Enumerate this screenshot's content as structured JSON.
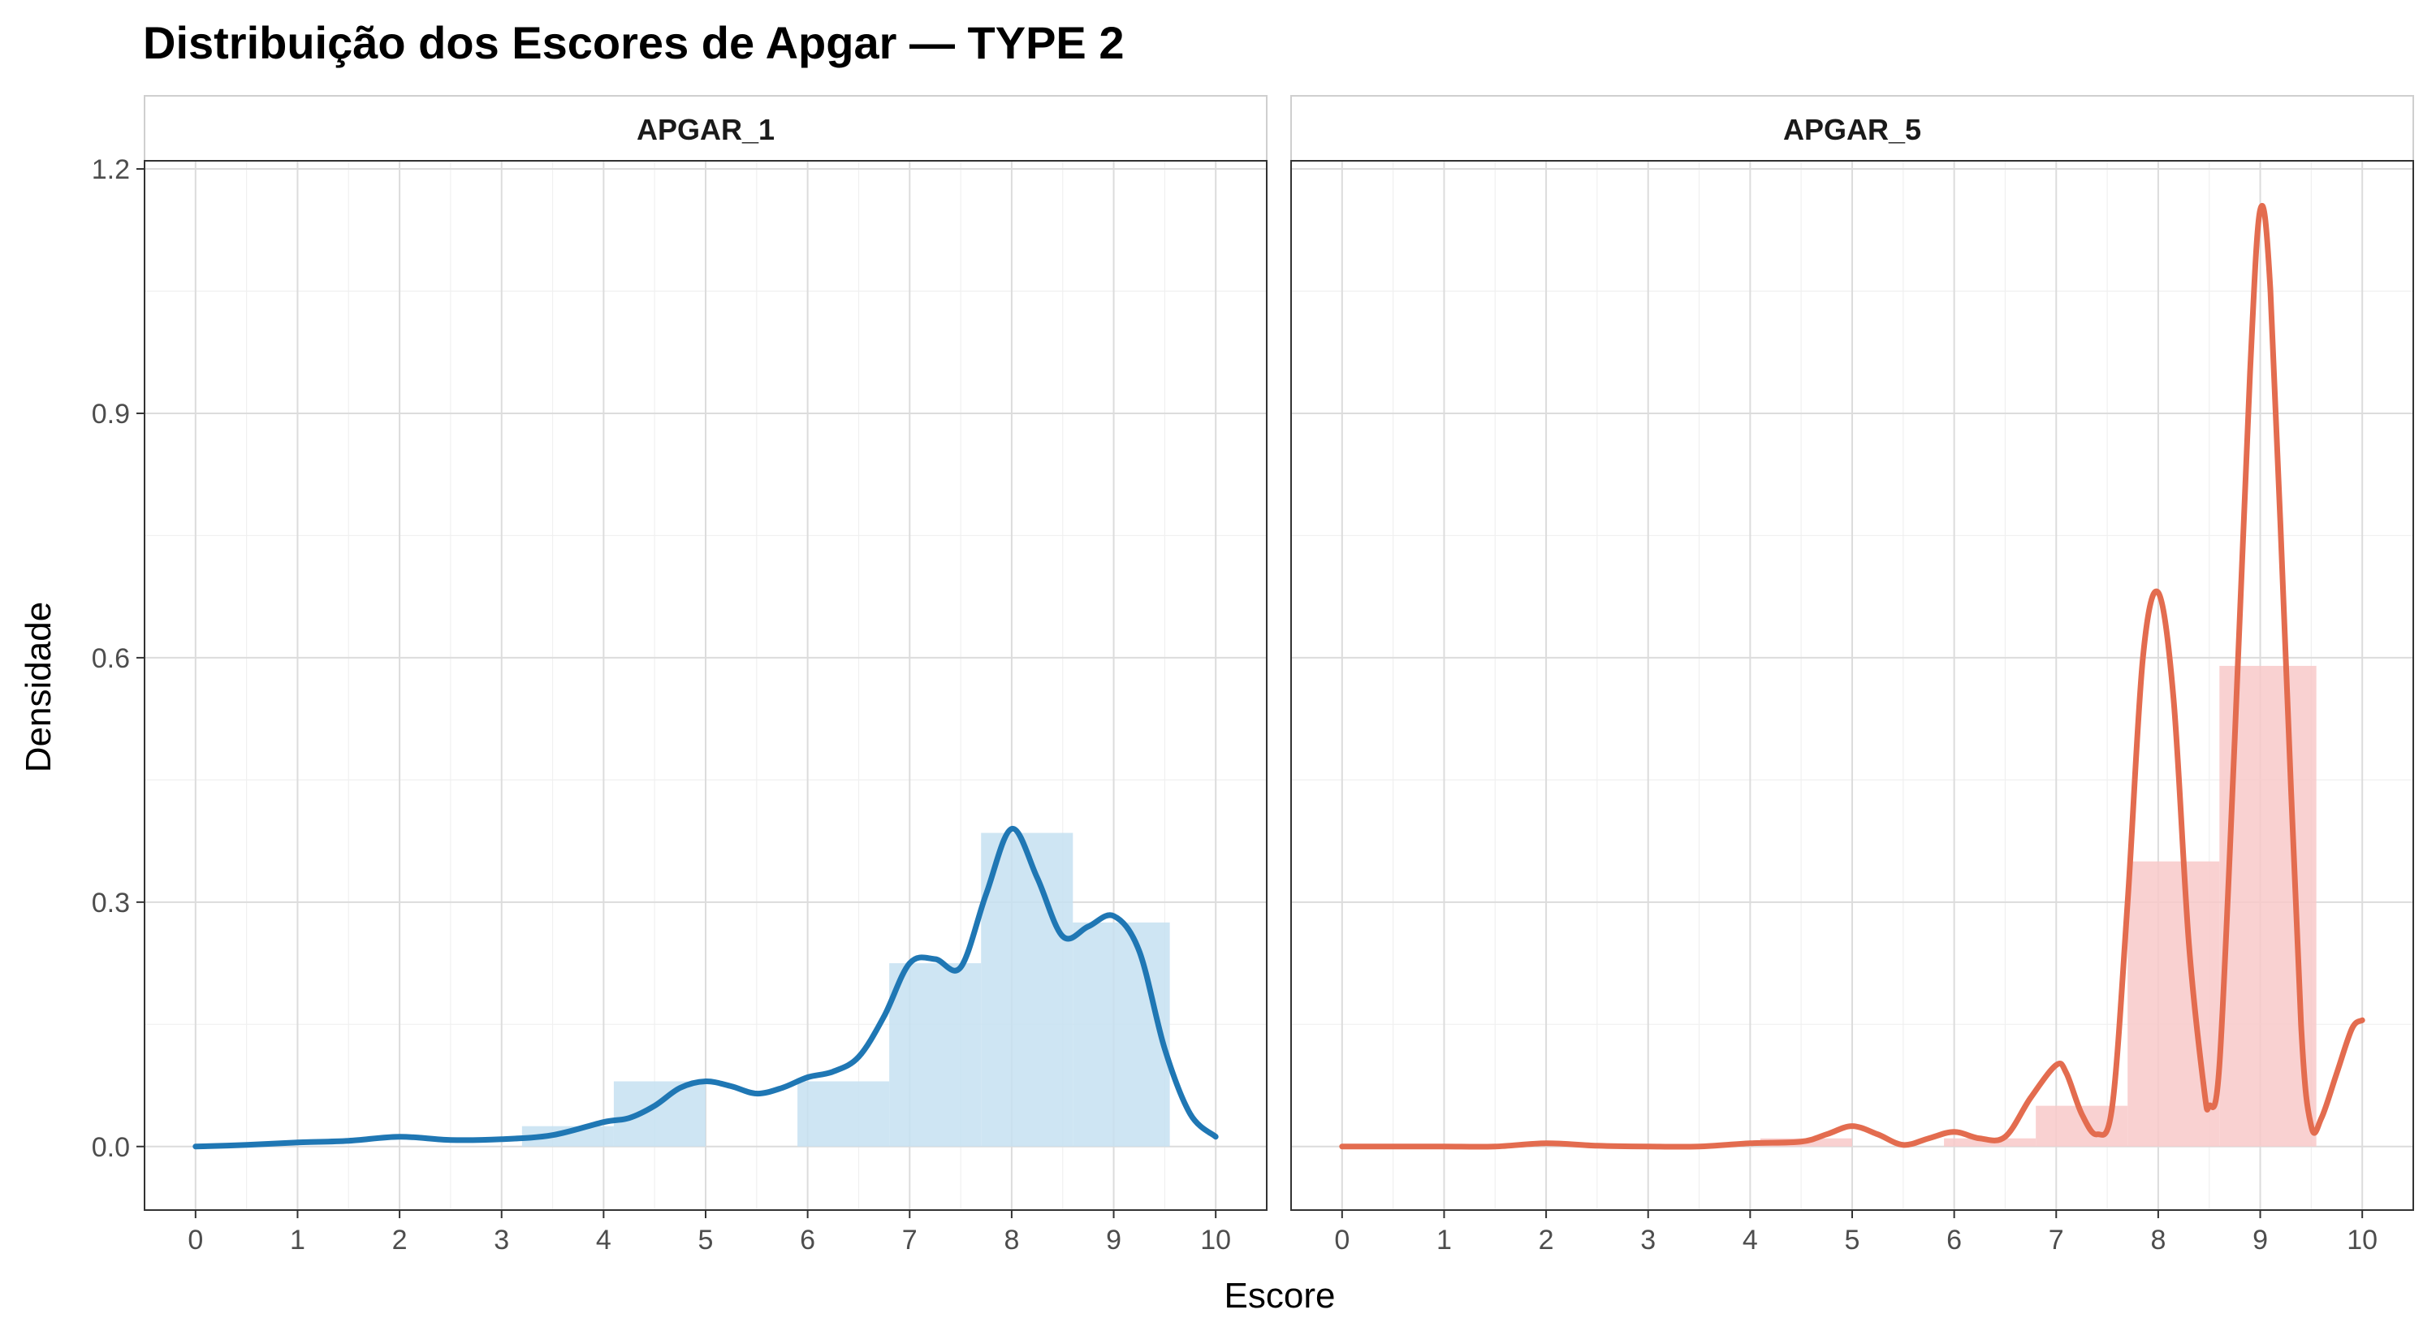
{
  "chart_data": {
    "type": "bar",
    "title": "Distribuição dos Escores de Apgar — TYPE 2",
    "xlabel": "Escore",
    "ylabel": "Densidade",
    "xlim": [
      0,
      10
    ],
    "ylim": [
      0,
      1.2
    ],
    "x_ticks": [
      0,
      1,
      2,
      3,
      4,
      5,
      6,
      7,
      8,
      9,
      10
    ],
    "y_ticks": [
      0.0,
      0.3,
      0.6,
      0.9,
      1.2
    ],
    "y_tick_labels": [
      "0.0",
      "0.3",
      "0.6",
      "0.9",
      "1.2"
    ],
    "grid": true,
    "panels": [
      {
        "name": "APGAR_1",
        "line_color": "#1F77B4",
        "bar_color": "#C6E0F1",
        "histogram": [
          {
            "x0": 3.2,
            "x1": 4.1,
            "density": 0.025
          },
          {
            "x0": 4.1,
            "x1": 5.0,
            "density": 0.08
          },
          {
            "x0": 5.9,
            "x1": 6.8,
            "density": 0.08
          },
          {
            "x0": 6.8,
            "x1": 7.7,
            "density": 0.225
          },
          {
            "x0": 7.7,
            "x1": 8.6,
            "density": 0.385
          },
          {
            "x0": 8.6,
            "x1": 9.55,
            "density": 0.275
          }
        ],
        "density": {
          "x": [
            0,
            0.5,
            1,
            1.5,
            2,
            2.5,
            3,
            3.5,
            4,
            4.25,
            4.5,
            4.75,
            5,
            5.25,
            5.5,
            5.75,
            6,
            6.25,
            6.5,
            6.75,
            7,
            7.25,
            7.5,
            7.75,
            8,
            8.25,
            8.5,
            8.75,
            9,
            9.25,
            9.5,
            9.75,
            10
          ],
          "y": [
            0.0,
            0.002,
            0.005,
            0.007,
            0.012,
            0.008,
            0.009,
            0.014,
            0.03,
            0.035,
            0.05,
            0.072,
            0.08,
            0.074,
            0.065,
            0.072,
            0.085,
            0.092,
            0.11,
            0.16,
            0.225,
            0.23,
            0.22,
            0.31,
            0.39,
            0.33,
            0.258,
            0.27,
            0.283,
            0.24,
            0.12,
            0.04,
            0.012
          ]
        }
      },
      {
        "name": "APGAR_5",
        "line_color": "#E36C4F",
        "bar_color": "#F8C9C9",
        "histogram": [
          {
            "x0": 4.1,
            "x1": 5.0,
            "density": 0.01
          },
          {
            "x0": 5.9,
            "x1": 6.8,
            "density": 0.01
          },
          {
            "x0": 6.8,
            "x1": 7.7,
            "density": 0.05
          },
          {
            "x0": 7.7,
            "x1": 8.6,
            "density": 0.35
          },
          {
            "x0": 8.6,
            "x1": 9.55,
            "density": 0.59
          }
        ],
        "density": {
          "x": [
            0,
            0.5,
            1,
            1.5,
            2,
            2.5,
            3,
            3.5,
            4,
            4.5,
            4.75,
            5,
            5.25,
            5.5,
            5.75,
            6,
            6.25,
            6.5,
            6.75,
            7,
            7.1,
            7.25,
            7.4,
            7.55,
            7.7,
            7.85,
            8,
            8.15,
            8.3,
            8.45,
            8.5,
            8.6,
            8.75,
            8.9,
            9,
            9.1,
            9.25,
            9.4,
            9.5,
            9.6,
            9.75,
            9.9,
            10
          ],
          "y": [
            0.0,
            0.0,
            0.0,
            0.0,
            0.004,
            0.001,
            0.0,
            0.0,
            0.004,
            0.006,
            0.015,
            0.025,
            0.015,
            0.002,
            0.01,
            0.018,
            0.01,
            0.012,
            0.06,
            0.1,
            0.09,
            0.04,
            0.015,
            0.05,
            0.3,
            0.6,
            0.68,
            0.55,
            0.25,
            0.07,
            0.05,
            0.1,
            0.5,
            0.95,
            1.15,
            1.05,
            0.6,
            0.15,
            0.025,
            0.035,
            0.09,
            0.145,
            0.155
          ]
        }
      }
    ]
  }
}
